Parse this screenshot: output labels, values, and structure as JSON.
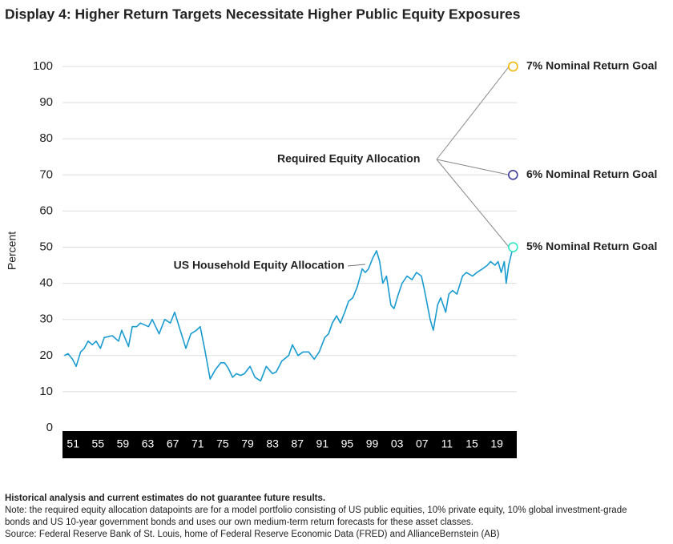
{
  "chart_data": {
    "type": "line",
    "title": "Display 4: Higher Return Targets Necessitate Higher Public Equity Exposures",
    "y_label": "Percent",
    "xlim": [
      1949.3,
      2022.2
    ],
    "xticks": [
      {
        "value": 1951,
        "label": "51"
      },
      {
        "value": 1955,
        "label": "55"
      },
      {
        "value": 1959,
        "label": "59"
      },
      {
        "value": 1963,
        "label": "63"
      },
      {
        "value": 1967,
        "label": "67"
      },
      {
        "value": 1971,
        "label": "71"
      },
      {
        "value": 1975,
        "label": "75"
      },
      {
        "value": 1979,
        "label": "79"
      },
      {
        "value": 1983,
        "label": "83"
      },
      {
        "value": 1987,
        "label": "87"
      },
      {
        "value": 1991,
        "label": "91"
      },
      {
        "value": 1995,
        "label": "95"
      },
      {
        "value": 1999,
        "label": "99"
      },
      {
        "value": 2003,
        "label": "03"
      },
      {
        "value": 2007,
        "label": "07"
      },
      {
        "value": 2011,
        "label": "11"
      },
      {
        "value": 2015,
        "label": "15"
      },
      {
        "value": 2019,
        "label": "19"
      }
    ],
    "ylim": [
      0,
      100
    ],
    "yticks": [
      0,
      10,
      20,
      30,
      40,
      50,
      60,
      70,
      80,
      90,
      100
    ],
    "grid": true,
    "series": [
      {
        "name": "US Household Equity Allocation",
        "color": "#1a9bd0",
        "x": [
          1949.6,
          1950.2,
          1950.9,
          1951.5,
          1952.2,
          1952.8,
          1953.4,
          1954.1,
          1954.7,
          1955.4,
          1956.0,
          1957.3,
          1958.3,
          1958.8,
          1959.9,
          1960.5,
          1961.2,
          1961.8,
          1963.1,
          1963.7,
          1964.8,
          1965.7,
          1966.6,
          1967.3,
          1968.2,
          1969.1,
          1969.9,
          1970.8,
          1971.4,
          1972.1,
          1973.0,
          1973.8,
          1974.7,
          1975.3,
          1975.9,
          1976.6,
          1977.2,
          1977.9,
          1978.5,
          1979.4,
          1980.2,
          1981.1,
          1982.0,
          1983.0,
          1983.6,
          1984.5,
          1985.6,
          1986.2,
          1987.1,
          1987.9,
          1988.8,
          1989.7,
          1990.5,
          1991.4,
          1992.0,
          1992.6,
          1993.3,
          1993.9,
          1994.6,
          1995.2,
          1995.9,
          1996.6,
          1997.4,
          1997.9,
          1998.4,
          1999.1,
          1999.7,
          2000.2,
          2000.7,
          2001.3,
          2002.0,
          2002.5,
          2003.2,
          2003.8,
          2004.6,
          2005.4,
          2006.1,
          2006.9,
          2007.4,
          2008.3,
          2008.8,
          2009.5,
          2010.0,
          2010.8,
          2011.3,
          2011.9,
          2012.6,
          2013.5,
          2014.1,
          2015.1,
          2015.8,
          2016.7,
          2017.5,
          2018.0,
          2018.7,
          2019.2,
          2019.7,
          2020.2,
          2020.5,
          2020.9,
          2021.6
        ],
        "values": [
          20,
          20.5,
          19,
          17,
          21,
          22,
          24,
          23,
          24,
          22,
          25,
          25.5,
          24,
          27,
          22.5,
          28,
          28,
          29,
          28,
          30,
          26,
          30,
          29,
          32,
          27,
          22,
          26,
          27,
          28,
          22,
          13.5,
          16,
          18,
          18,
          16.5,
          14,
          15,
          14.5,
          15,
          17,
          14,
          13,
          17,
          15,
          15.5,
          18.5,
          20,
          23,
          20,
          21,
          21,
          19,
          21,
          25,
          26,
          29,
          31,
          29,
          32,
          35,
          36,
          39,
          44,
          43,
          44,
          47,
          49,
          46,
          40,
          42,
          34,
          33,
          37,
          40,
          42,
          41,
          43,
          42,
          38,
          30,
          27,
          34,
          36,
          32,
          37,
          38,
          37,
          42,
          43,
          42,
          43,
          44,
          45,
          46,
          45,
          46,
          43,
          46,
          40,
          45,
          50
        ]
      }
    ],
    "annotation": "Required Equity Allocation",
    "points": [
      {
        "name": "7% Nominal Return Goal",
        "x": 2021.6,
        "y": 100,
        "color": "#f2b705"
      },
      {
        "name": "6% Nominal Return Goal",
        "x": 2021.6,
        "y": 70,
        "color": "#3d3d99"
      },
      {
        "name": "5% Nominal Return Goal",
        "x": 2021.6,
        "y": 50,
        "color": "#2ee6c2"
      }
    ],
    "footnotes": [
      "Historical analysis and current estimates do not guarantee future results.",
      "Note: the required equity allocation datapoints are for a model portfolio consisting of US public equities, 10% private equity, 10% global investment-grade",
      "bonds and US 10-year government bonds and uses our own medium-term return forecasts for these asset classes.",
      "Source: Federal Reserve Bank of St. Louis, home of Federal Reserve Economic Data (FRED) and AllianceBernstein (AB)"
    ]
  }
}
